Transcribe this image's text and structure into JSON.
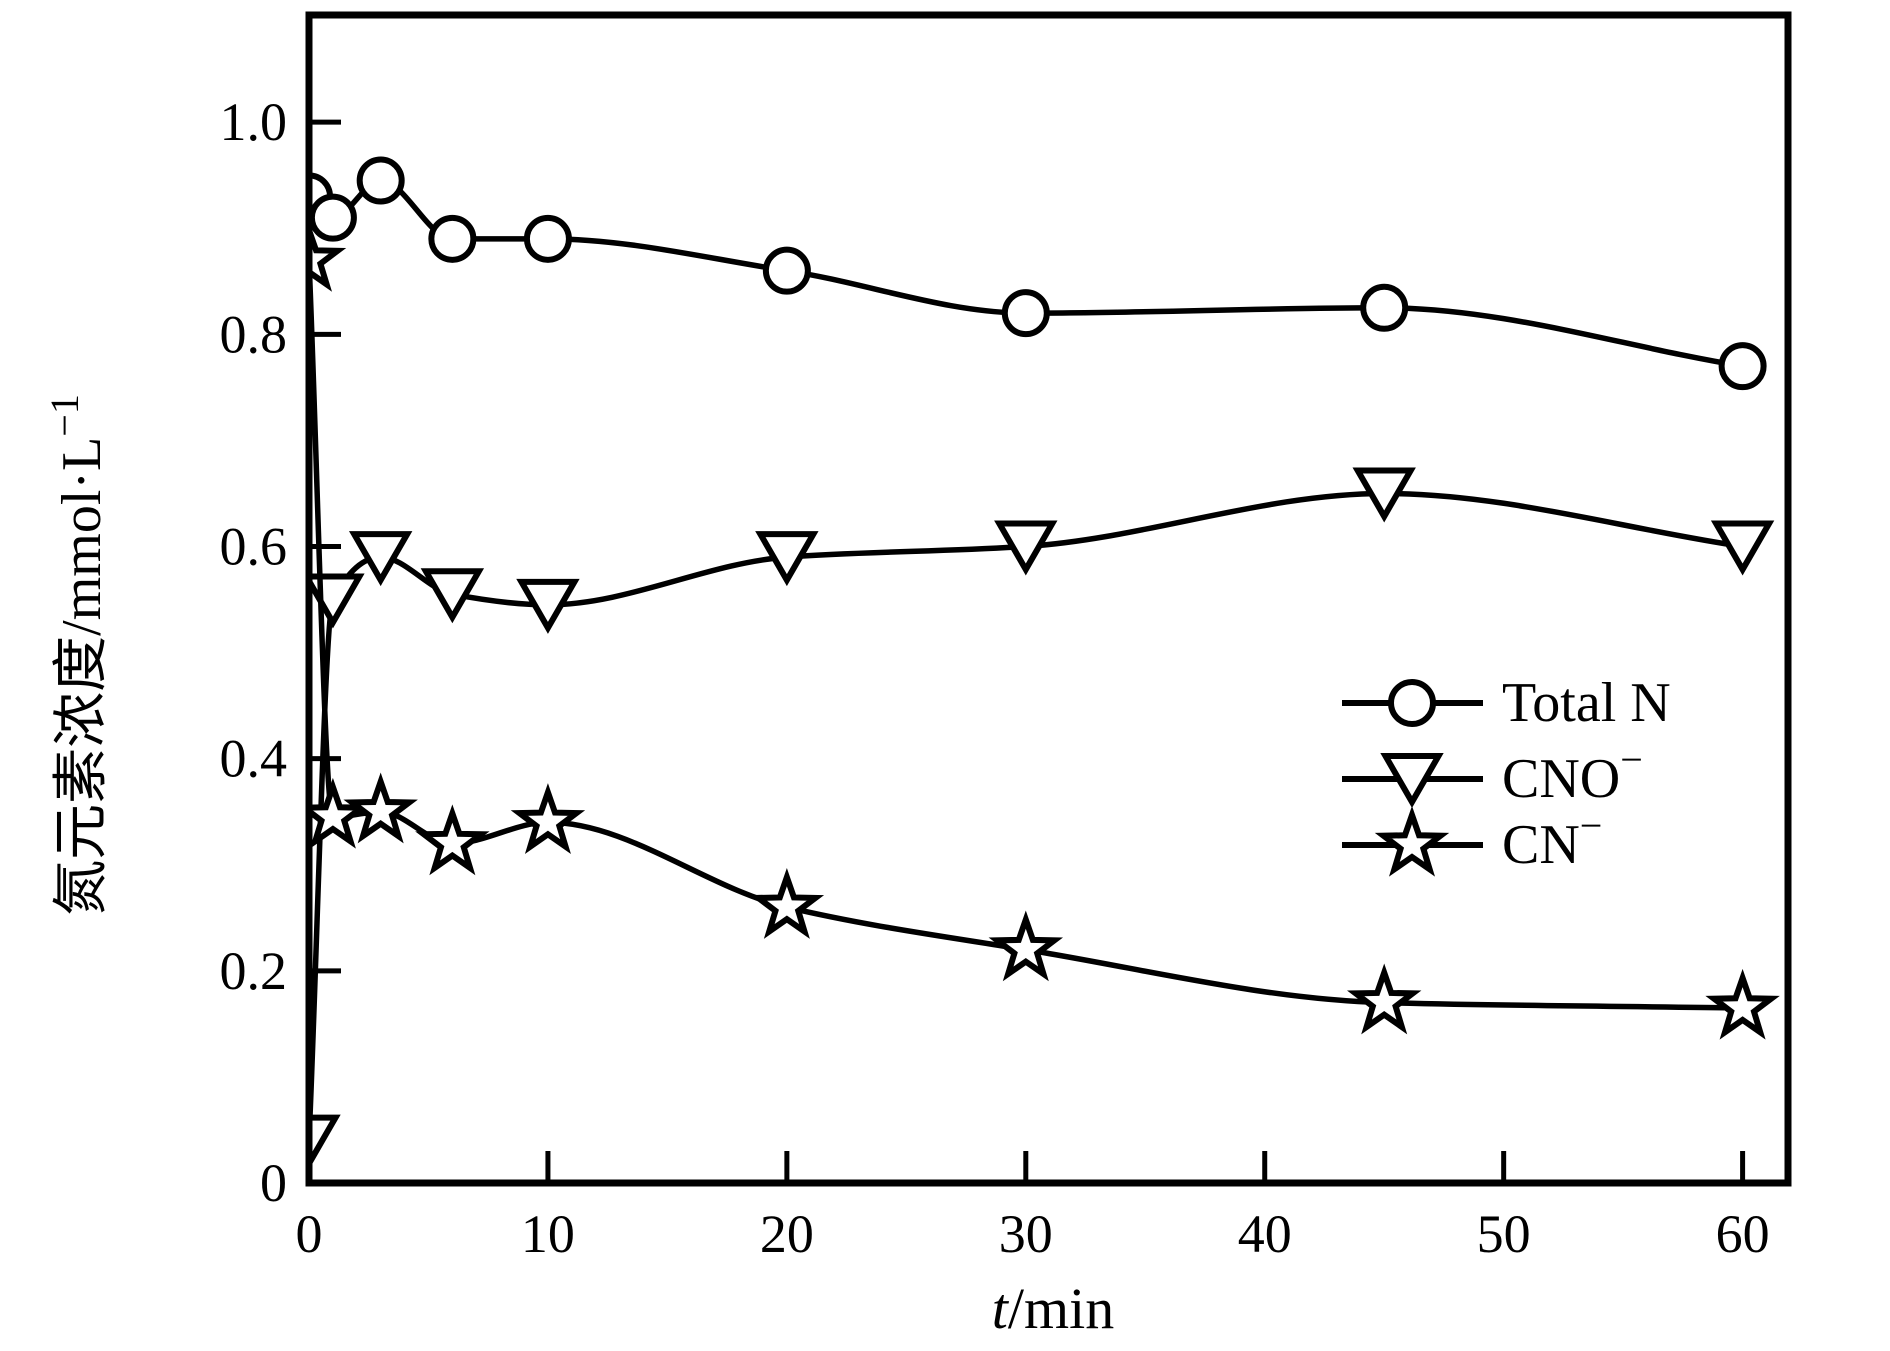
{
  "chart_data": {
    "type": "line",
    "title": "",
    "xlabel": {
      "italic": "t",
      "text": "/min"
    },
    "ylabel": {
      "text": "氮元素浓度/mmol·L",
      "sup": "−1"
    },
    "xlim": [
      0,
      61.9
    ],
    "ylim": [
      0,
      1.101
    ],
    "x_ticks": [
      0,
      10,
      20,
      30,
      40,
      50,
      60
    ],
    "x_tick_labels": [
      "0",
      "10",
      "20",
      "30",
      "40",
      "50",
      "60"
    ],
    "y_ticks": [
      0,
      0.2,
      0.4,
      0.6,
      0.8,
      1.0
    ],
    "y_tick_labels": [
      "0",
      "0.2",
      "0.4",
      "0.6",
      "0.8",
      "1.0"
    ],
    "grid": false,
    "legend_position": "center-right",
    "line_color": "#000000",
    "marker_fill": "#ffffff",
    "background_color": "#ffffff",
    "series": [
      {
        "name": "total-n",
        "label": {
          "text": "Total N",
          "sup": ""
        },
        "marker": "circle",
        "x": [
          0,
          1,
          3,
          6,
          10,
          20,
          30,
          45,
          60
        ],
        "y": [
          0.93,
          0.91,
          0.945,
          0.89,
          0.89,
          0.86,
          0.82,
          0.825,
          0.77
        ]
      },
      {
        "name": "cno",
        "label": {
          "text": "CNO",
          "sup": "−"
        },
        "marker": "triangle-down",
        "x": [
          0,
          1,
          3,
          6,
          10,
          20,
          30,
          45,
          60
        ],
        "y": [
          0.04,
          0.55,
          0.59,
          0.555,
          0.545,
          0.59,
          0.6,
          0.65,
          0.6
        ]
      },
      {
        "name": "cn",
        "label": {
          "text": "CN",
          "sup": "−"
        },
        "marker": "star",
        "x": [
          0,
          1,
          3,
          6,
          10,
          20,
          30,
          45,
          60
        ],
        "y": [
          0.87,
          0.345,
          0.35,
          0.32,
          0.34,
          0.26,
          0.22,
          0.17,
          0.165
        ]
      }
    ]
  }
}
